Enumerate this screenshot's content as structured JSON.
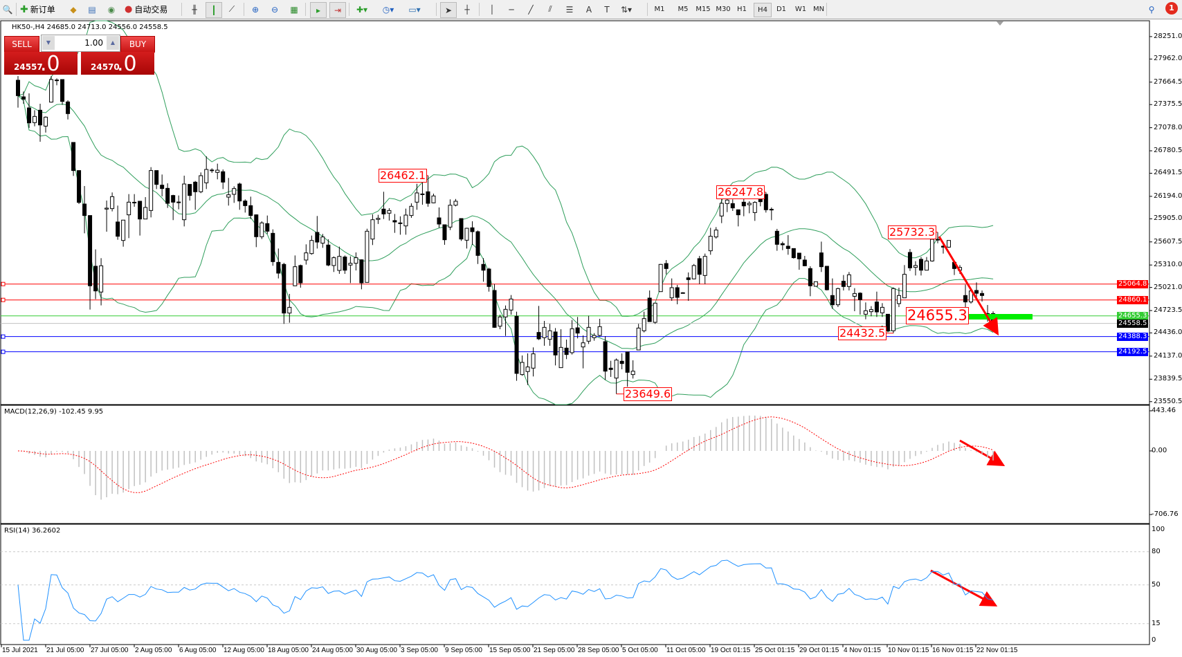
{
  "toolbar": {
    "new_order": "新订单",
    "auto_trading": "自动交易",
    "timeframes": [
      "M1",
      "M5",
      "M15",
      "M30",
      "H1",
      "H4",
      "D1",
      "W1",
      "MN"
    ],
    "active_timeframe": "H4",
    "notification_count": "1",
    "icons": [
      "search-icon",
      "new-order-icon",
      "metaeditor-icon",
      "market-watch-icon",
      "signals-icon",
      "auto-trading-icon",
      "bar-chart-icon",
      "candlestick-icon",
      "line-chart-icon",
      "zoom-in-icon",
      "zoom-out-icon",
      "tile-windows-icon",
      "auto-scroll-icon",
      "chart-shift-icon",
      "indicators-icon",
      "periods-icon",
      "templates-icon",
      "cursor-icon",
      "crosshair-icon",
      "vertical-line-icon",
      "horizontal-line-icon",
      "trendline-icon",
      "fibonacci-icon",
      "channel-icon",
      "text-icon",
      "text-label-icon",
      "arrows-icon"
    ]
  },
  "chart": {
    "symbol_info": "HK50-,H4  24685.0 24713.0 24556.0 24558.5"
  },
  "trade_panel": {
    "sell_label": "SELL",
    "buy_label": "BUY",
    "lot": "1.00",
    "sell_price_main": "24557",
    "sell_price_frac": ".0",
    "buy_price_main": "24570",
    "buy_price_frac": ".0"
  },
  "chart_data": {
    "type": "candlestick",
    "symbol": "HK50-",
    "timeframe": "H4",
    "ohlc": {
      "open": "24685.0",
      "high": "24713.0",
      "low": "24556.0",
      "close": "24558.5"
    },
    "y_range": [
      23550.5,
      28251.0
    ],
    "y_ticks": [
      "28251.0",
      "27962.0",
      "27664.5",
      "27375.5",
      "27078.0",
      "26780.5",
      "26491.5",
      "26194.0",
      "25905.0",
      "25607.5",
      "25310.0",
      "25021.0",
      "24723.5",
      "24436.0",
      "24137.0",
      "23839.5",
      "23550.5"
    ],
    "x_ticks": [
      "15 Jul 2021",
      "21 Jul 05:00",
      "27 Jul 05:00",
      "2 Aug 05:00",
      "6 Aug 05:00",
      "12 Aug 05:00",
      "18 Aug 05:00",
      "24 Aug 05:00",
      "30 Aug 05:00",
      "3 Sep 05:00",
      "9 Sep 05:00",
      "15 Sep 05:00",
      "21 Sep 05:00",
      "28 Sep 05:00",
      "5 Oct 05:00",
      "11 Oct 05:00",
      "19 Oct 01:15",
      "25 Oct 01:15",
      "29 Oct 01:15",
      "4 Nov 01:15",
      "10 Nov 01:15",
      "16 Nov 01:15",
      "22 Nov 01:15"
    ],
    "candles": [
      [
        27689,
        27742,
        27336,
        27490
      ],
      [
        27475,
        27544,
        27386,
        27446
      ],
      [
        27333,
        27520,
        27075,
        27140
      ],
      [
        27143,
        27303,
        27096,
        27223
      ],
      [
        27303,
        27386,
        26897,
        27113
      ],
      [
        27098,
        27223,
        27015,
        27214
      ],
      [
        27407,
        27742,
        27401,
        27698
      ],
      [
        27690,
        27713,
        27624,
        27692
      ],
      [
        27698,
        27698,
        27372,
        27416
      ],
      [
        27410,
        27431,
        27184,
        27259
      ],
      [
        26888,
        26888,
        26457,
        26526
      ],
      [
        26526,
        26526,
        26095,
        26116
      ],
      [
        26095,
        26327,
        25718,
        25947
      ],
      [
        25947,
        25947,
        24736,
        25042
      ],
      [
        25294,
        25511,
        24870,
        24976
      ],
      [
        24962,
        25398,
        24790,
        25300
      ],
      [
        26030,
        26140,
        25739,
        26042
      ],
      [
        26036,
        26244,
        26000,
        26190
      ],
      [
        25864,
        26075,
        25635,
        25680
      ],
      [
        25626,
        25888,
        25546,
        25888
      ],
      [
        25956,
        26223,
        25656,
        26119
      ],
      [
        26116,
        26223,
        26060,
        26118
      ],
      [
        26131,
        26131,
        25689,
        25902
      ],
      [
        25902,
        26184,
        25902,
        26051
      ],
      [
        26012,
        26570,
        25923,
        26526
      ],
      [
        26526,
        26526,
        26288,
        26348
      ],
      [
        26338,
        26475,
        26193,
        26294
      ],
      [
        26297,
        26362,
        26045,
        26104
      ],
      [
        26205,
        26214,
        25888,
        26119
      ],
      [
        26119,
        26205,
        26027,
        26121
      ],
      [
        25893,
        26460,
        25807,
        26353
      ],
      [
        26348,
        26348,
        26140,
        26205
      ],
      [
        26377,
        26392,
        26021,
        26253
      ],
      [
        26253,
        26502,
        26235,
        26460
      ],
      [
        26368,
        26710,
        26288,
        26540
      ],
      [
        26531,
        26555,
        26496,
        26533
      ],
      [
        26502,
        26615,
        26413,
        26531
      ],
      [
        26511,
        26540,
        26288,
        26377
      ],
      [
        26184,
        26431,
        26075,
        26214
      ],
      [
        26220,
        26323,
        26110,
        26294
      ],
      [
        26353,
        26371,
        26021,
        26134
      ],
      [
        26134,
        26155,
        25985,
        26074
      ],
      [
        26074,
        26190,
        25902,
        25947
      ],
      [
        25956,
        25962,
        25540,
        25674
      ],
      [
        25674,
        25873,
        25644,
        25852
      ],
      [
        25843,
        25947,
        25709,
        25745
      ],
      [
        25718,
        25769,
        25300,
        25353
      ],
      [
        25344,
        25522,
        25137,
        25205
      ],
      [
        25318,
        25338,
        24552,
        24691
      ],
      [
        24691,
        24938,
        24567,
        24765
      ],
      [
        25042,
        25433,
        25042,
        25288
      ],
      [
        25303,
        25315,
        25018,
        25080
      ],
      [
        25374,
        25576,
        25315,
        25466
      ],
      [
        25457,
        25689,
        25442,
        25626
      ],
      [
        25730,
        25941,
        25522,
        25605
      ],
      [
        25591,
        25710,
        25531,
        25671
      ],
      [
        25567,
        25641,
        25294,
        25309
      ],
      [
        25303,
        25421,
        25220,
        25404
      ],
      [
        25240,
        25546,
        25196,
        25421
      ],
      [
        25413,
        25433,
        25196,
        25243
      ],
      [
        25309,
        25421,
        25077,
        25332
      ],
      [
        25332,
        25472,
        25240,
        25404
      ],
      [
        25377,
        25383,
        24997,
        25080
      ],
      [
        25086,
        25777,
        25086,
        25745
      ],
      [
        25644,
        25962,
        25567,
        25893
      ],
      [
        25897,
        25956,
        25838,
        25911
      ],
      [
        26030,
        26253,
        25902,
        25967
      ],
      [
        25977,
        26042,
        25882,
        26012
      ],
      [
        25882,
        25967,
        25724,
        25864
      ],
      [
        25852,
        25937,
        25700,
        25843
      ],
      [
        25813,
        26036,
        25700,
        25953
      ],
      [
        25947,
        26104,
        25917,
        26066
      ],
      [
        26119,
        26356,
        26021,
        26238
      ],
      [
        26223,
        26377,
        26086,
        26225
      ],
      [
        26253,
        26462.1,
        26060,
        26104
      ],
      [
        26110,
        26229,
        26104,
        26199
      ],
      [
        25917,
        26051,
        25789,
        25837
      ],
      [
        25828,
        25828,
        25570,
        25635
      ],
      [
        25798,
        26155,
        25760,
        26080
      ],
      [
        26080,
        26160,
        26065,
        26131
      ],
      [
        25908,
        25908,
        25620,
        25644
      ],
      [
        25629,
        25789,
        25522,
        25783
      ],
      [
        25789,
        25873,
        25570,
        25739
      ],
      [
        25739,
        25754,
        25323,
        25433
      ],
      [
        25318,
        25398,
        25095,
        25243
      ],
      [
        25258,
        25273,
        24967,
        25033
      ],
      [
        24982,
        25065,
        24501,
        24507
      ],
      [
        24522,
        24670,
        24483,
        24641
      ],
      [
        24641,
        24789,
        24397,
        24739
      ],
      [
        24730,
        24923,
        24670,
        24872
      ],
      [
        24650,
        24709,
        23819,
        23914
      ],
      [
        23899,
        24145,
        23884,
        24056
      ],
      [
        23938,
        24172,
        23765,
        23997
      ],
      [
        23982,
        24249,
        23875,
        24166
      ],
      [
        24442,
        24783,
        24344,
        24359
      ],
      [
        24374,
        24590,
        24270,
        24507
      ],
      [
        24353,
        24552,
        24270,
        24463
      ],
      [
        24448,
        24498,
        24017,
        24151
      ],
      [
        23988,
        24483,
        23988,
        24249
      ],
      [
        24240,
        24350,
        24098,
        24157
      ],
      [
        24181,
        24602,
        24157,
        24489
      ],
      [
        24501,
        24641,
        24365,
        24433
      ],
      [
        24255,
        24403,
        23979,
        24308
      ],
      [
        24329,
        24656,
        24293,
        24507
      ],
      [
        24374,
        24433,
        24335,
        24403
      ],
      [
        24403,
        24617,
        24388,
        24516
      ],
      [
        24323,
        24394,
        23831,
        23943
      ],
      [
        23982,
        24077,
        23869,
        23964
      ],
      [
        23854,
        24107,
        23649.6,
        24086
      ],
      [
        24071,
        24172,
        23967,
        24041
      ],
      [
        24190,
        24190,
        23742,
        23928
      ],
      [
        23899,
        24083,
        23848,
        23943
      ],
      [
        24216,
        24552,
        24216,
        24498
      ],
      [
        24463,
        24709,
        24442,
        24620
      ],
      [
        24884,
        24982,
        24581,
        24581
      ],
      [
        24572,
        24819,
        24552,
        24819
      ],
      [
        24967,
        25323,
        24967,
        25318
      ],
      [
        25329,
        25374,
        25190,
        25264
      ],
      [
        24887,
        25137,
        24849,
        25018
      ],
      [
        25018,
        25054,
        24804,
        24893
      ],
      [
        24950,
        24960,
        24945,
        24953
      ],
      [
        25145,
        25214,
        24849,
        25122
      ],
      [
        25131,
        25323,
        25125,
        25303
      ],
      [
        25392,
        25427,
        25065,
        25190
      ],
      [
        25175,
        25457,
        25065,
        25421
      ],
      [
        25493,
        25789,
        25442,
        25680
      ],
      [
        25671,
        25798,
        25650,
        25760
      ],
      [
        25941,
        26163,
        25849,
        26104
      ],
      [
        26101,
        26214,
        25991,
        26146
      ],
      [
        26101,
        26155,
        26006,
        26045
      ],
      [
        26021,
        26021,
        25807,
        25956
      ],
      [
        26119,
        26163,
        25938,
        26071
      ],
      [
        26086,
        26131,
        25976,
        26104
      ],
      [
        25985,
        26131,
        25878,
        26116
      ],
      [
        26155,
        26175,
        26066,
        26125
      ],
      [
        26220,
        26247.8,
        25985,
        26021
      ],
      [
        26027,
        26051,
        25887,
        26027
      ],
      [
        25745,
        25775,
        25493,
        25576
      ],
      [
        25585,
        25611,
        25501,
        25570
      ],
      [
        25552,
        25695,
        25442,
        25522
      ],
      [
        25522,
        25522,
        25392,
        25404
      ],
      [
        25463,
        25463,
        25249,
        25389
      ],
      [
        25374,
        25427,
        25294,
        25300
      ],
      [
        25264,
        25294,
        24908,
        25042
      ],
      [
        25036,
        25095,
        25036,
        25095
      ],
      [
        25466,
        25611,
        25220,
        25288
      ],
      [
        25294,
        25294,
        24982,
        24991
      ],
      [
        24917,
        25137,
        24745,
        24798
      ],
      [
        24798,
        25018,
        24769,
        25006
      ],
      [
        25101,
        25181,
        24982,
        25033
      ],
      [
        25033,
        25220,
        24982,
        25184
      ],
      [
        24907,
        25012,
        24715,
        24943
      ],
      [
        24947,
        24959,
        24671,
        24863
      ],
      [
        24676,
        24828,
        24611,
        24721
      ],
      [
        24709,
        24780,
        24650,
        24736
      ],
      [
        24834,
        24967,
        24641,
        24706
      ],
      [
        24694,
        24819,
        24641,
        24765
      ],
      [
        24676,
        24676,
        24443,
        24463
      ],
      [
        24463,
        25021,
        24432.5,
        25006
      ],
      [
        24813,
        25018,
        24768,
        24917
      ],
      [
        24887,
        25309,
        24887,
        25190
      ],
      [
        25472,
        25516,
        25234,
        25273
      ],
      [
        25279,
        25359,
        25175,
        25303
      ],
      [
        25383,
        25413,
        25175,
        25243
      ],
      [
        25243,
        25413,
        25243,
        25362
      ],
      [
        25362,
        25641,
        25352,
        25641
      ],
      [
        25635,
        25732.3,
        25590,
        25640
      ],
      [
        25552,
        25576,
        25457,
        25540
      ],
      [
        25540,
        25626,
        25531,
        25626
      ],
      [
        25344,
        25353,
        25181,
        25264
      ],
      [
        25243,
        25309,
        25196,
        25279
      ],
      [
        24917,
        25057,
        24769,
        24834
      ],
      [
        24834,
        24997,
        24813,
        24976
      ],
      [
        24982,
        25086,
        24854,
        24946
      ],
      [
        24944,
        24982,
        24840,
        24917
      ],
      [
        24685,
        24795,
        24581,
        24625
      ],
      [
        24685,
        24713,
        24556,
        24558.5
      ]
    ],
    "colors": {
      "bull_body": "#ffffff",
      "bear_body": "#000000",
      "bollinger": "#2e9e5b",
      "macd_histogram": "#c0c0c0",
      "macd_signal": "#ff0000",
      "rsi": "#1e90ff",
      "annotation": "#ff0000"
    },
    "horizontal_lines": [
      {
        "price": "25064.8",
        "color": "#ff0000"
      },
      {
        "price": "24860.1",
        "color": "#ff0000"
      },
      {
        "price": "24655.3",
        "color": "#33cc33"
      },
      {
        "price": "24558.5",
        "color": "#000000",
        "line_color": "#c0c0c0"
      },
      {
        "price": "24388.3",
        "color": "#0000ff"
      },
      {
        "price": "24192.5",
        "color": "#0000ff"
      }
    ],
    "annotations": [
      {
        "text": "26462.1",
        "price": 26462.1
      },
      {
        "text": "26247.8",
        "price": 26247.8
      },
      {
        "text": "25732.3",
        "price": 25732.3
      },
      {
        "text": "24655.3",
        "price": 24655.3
      },
      {
        "text": "24432.5",
        "price": 24432.5
      },
      {
        "text": "23649.6",
        "price": 23649.6
      }
    ],
    "indicators": {
      "bollinger": {
        "period": 20,
        "deviation": 2
      },
      "macd": {
        "label": "MACD(12,26,9) -102.45 9.95",
        "ticks": [
          "443.46",
          "0.00",
          "-706.76"
        ],
        "range": [
          -706.76,
          443.46
        ]
      },
      "rsi": {
        "label": "RSI(14) 36.2602",
        "ticks": [
          "100",
          "80",
          "50",
          "15",
          "0"
        ],
        "levels": [
          80,
          50,
          15
        ]
      }
    }
  }
}
